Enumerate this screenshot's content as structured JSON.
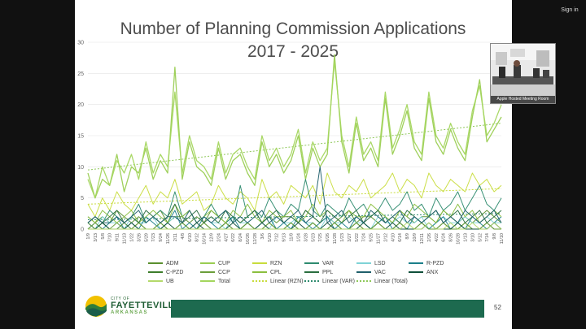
{
  "meeting": {
    "sign_in_label": "Sign in",
    "participant_label": "Apple Hosted Meeting Room"
  },
  "slide": {
    "page_number": "52",
    "logo": {
      "city_of": "CITY OF",
      "name": "FAYETTEVILLE",
      "state": "ARKANSAS"
    }
  },
  "chart_data": {
    "type": "line",
    "title_lines": [
      "Number of Planning Commission Applications",
      "2017 - 2025"
    ],
    "ylim": [
      0,
      30
    ],
    "yticks": [
      0,
      5,
      10,
      15,
      20,
      25,
      30
    ],
    "grid": true,
    "legend_position": "bottom",
    "x_labels": [
      "1/9",
      "3/13",
      "5/8",
      "7/10",
      "9/11",
      "11/13",
      "1/22",
      "3/26",
      "5/29",
      "7/23",
      "9/24",
      "11/26",
      "2/11",
      "4/8",
      "6/10",
      "8/12",
      "10/14",
      "12/9",
      "2/24",
      "4/27",
      "6/22",
      "8/24",
      "10/26",
      "12/28",
      "3/6",
      "5/10",
      "7/12",
      "9/13",
      "11/8",
      "1/24",
      "3/28",
      "5/23",
      "7/25",
      "9/26",
      "11/28",
      "1/23",
      "3/27",
      "5/22",
      "7/24",
      "9/25",
      "11/27",
      "2/12",
      "4/10",
      "6/14",
      "8/9",
      "10/9",
      "12/11",
      "2/26",
      "4/22",
      "6/24",
      "8/26",
      "10/28",
      "1/13",
      "3/10",
      "5/12",
      "7/14",
      "9/8",
      "11/10"
    ],
    "series": [
      {
        "name": "ADM",
        "color": "#5a8f2e",
        "values": [
          2,
          1,
          2,
          1,
          3,
          2,
          1,
          2,
          1,
          2,
          3,
          1,
          2,
          2,
          1,
          2,
          1,
          3,
          2,
          1,
          2,
          1,
          2,
          3,
          1,
          2,
          1,
          2,
          2,
          1,
          3,
          2,
          1,
          2,
          1,
          2,
          3,
          1,
          2,
          2,
          1,
          2,
          1,
          3,
          2,
          1,
          2,
          2,
          1,
          3,
          2,
          1,
          2,
          1,
          2,
          3,
          2,
          1
        ]
      },
      {
        "name": "CUP",
        "color": "#9acd52",
        "values": [
          9,
          5,
          8,
          7,
          12,
          6,
          10,
          9,
          13,
          8,
          11,
          9,
          26,
          8,
          14,
          10,
          9,
          7,
          13,
          8,
          11,
          12,
          9,
          7,
          14,
          10,
          12,
          9,
          11,
          15,
          8,
          13,
          10,
          12,
          28,
          14,
          9,
          17,
          11,
          13,
          10,
          21,
          12,
          15,
          19,
          13,
          11,
          21,
          14,
          12,
          16,
          13,
          11,
          18,
          24,
          14,
          16,
          18
        ]
      },
      {
        "name": "RZN",
        "color": "#c8dc3c",
        "values": [
          4,
          2,
          5,
          3,
          6,
          4,
          3,
          5,
          7,
          4,
          6,
          5,
          8,
          4,
          5,
          6,
          3,
          4,
          7,
          5,
          4,
          6,
          5,
          3,
          8,
          5,
          6,
          4,
          7,
          6,
          5,
          7,
          4,
          9,
          6,
          5,
          7,
          6,
          8,
          5,
          6,
          7,
          9,
          6,
          8,
          7,
          5,
          9,
          7,
          6,
          8,
          7,
          6,
          9,
          7,
          8,
          6,
          7
        ]
      },
      {
        "name": "VAR",
        "color": "#2e8b6f",
        "values": [
          1,
          2,
          1,
          3,
          2,
          1,
          2,
          4,
          1,
          2,
          3,
          2,
          6,
          2,
          3,
          1,
          2,
          4,
          2,
          3,
          1,
          7,
          2,
          3,
          2,
          5,
          3,
          2,
          4,
          3,
          8,
          3,
          2,
          4,
          3,
          2,
          5,
          3,
          4,
          2,
          3,
          5,
          3,
          4,
          6,
          3,
          4,
          2,
          5,
          3,
          4,
          6,
          3,
          5,
          7,
          4,
          3,
          5
        ]
      },
      {
        "name": "LSD",
        "color": "#7fd3d6",
        "values": [
          1,
          0,
          2,
          1,
          1,
          0,
          2,
          1,
          1,
          2,
          0,
          1,
          2,
          1,
          0,
          1,
          2,
          1,
          1,
          0,
          2,
          1,
          1,
          2,
          1,
          0,
          2,
          1,
          1,
          2,
          1,
          1,
          0,
          2,
          1,
          1,
          2,
          1,
          1,
          0,
          2,
          1,
          1,
          2,
          1,
          1,
          2,
          0,
          1,
          2,
          1,
          1,
          2,
          1,
          1,
          2,
          1,
          1
        ]
      },
      {
        "name": "R-PZD",
        "color": "#1b7f8a",
        "values": [
          0,
          1,
          0,
          1,
          2,
          0,
          1,
          0,
          2,
          1,
          0,
          1,
          3,
          0,
          1,
          0,
          2,
          1,
          0,
          1,
          2,
          0,
          1,
          0,
          1,
          2,
          0,
          1,
          0,
          2,
          1,
          0,
          1,
          2,
          0,
          1,
          0,
          2,
          1,
          0,
          1,
          2,
          0,
          1,
          0,
          2,
          1,
          0,
          1,
          2,
          0,
          1,
          0,
          2,
          1,
          0,
          1,
          2
        ]
      },
      {
        "name": "C-PZD",
        "color": "#3d7d2b",
        "values": [
          1,
          0,
          1,
          0,
          0,
          1,
          0,
          1,
          0,
          0,
          1,
          0,
          0,
          1,
          0,
          0,
          1,
          0,
          0,
          1,
          0,
          0,
          1,
          0,
          0,
          1,
          0,
          0,
          1,
          0,
          0,
          1,
          0,
          0,
          1,
          0,
          0,
          1,
          0,
          0,
          1,
          0,
          0,
          1,
          0,
          0,
          1,
          0,
          0,
          1,
          0,
          0,
          1,
          0,
          0,
          1,
          0,
          0
        ]
      },
      {
        "name": "CCP",
        "color": "#6b9e3a",
        "values": [
          0,
          1,
          0,
          0,
          1,
          0,
          0,
          1,
          0,
          0,
          1,
          0,
          0,
          1,
          0,
          0,
          1,
          0,
          0,
          1,
          0,
          0,
          1,
          0,
          0,
          1,
          0,
          0,
          1,
          0,
          0,
          1,
          0,
          0,
          1,
          0,
          0,
          1,
          0,
          0,
          1,
          0,
          0,
          1,
          0,
          0,
          1,
          0,
          0,
          1,
          0,
          0,
          1,
          0,
          0,
          1,
          0,
          0
        ]
      },
      {
        "name": "CPL",
        "color": "#8bbf3f",
        "values": [
          2,
          1,
          3,
          2,
          1,
          2,
          3,
          1,
          2,
          3,
          2,
          1,
          4,
          2,
          3,
          1,
          2,
          3,
          2,
          1,
          3,
          2,
          4,
          2,
          1,
          3,
          2,
          2,
          3,
          1,
          2,
          4,
          2,
          3,
          2,
          1,
          3,
          2,
          2,
          4,
          3,
          2,
          1,
          3,
          2,
          4,
          3,
          2,
          1,
          3,
          2,
          4,
          2,
          3,
          1,
          2,
          3,
          2
        ]
      },
      {
        "name": "PPL",
        "color": "#2a6e3f",
        "values": [
          1,
          2,
          1,
          2,
          3,
          1,
          2,
          1,
          3,
          2,
          1,
          2,
          4,
          1,
          2,
          3,
          1,
          2,
          1,
          3,
          2,
          1,
          2,
          3,
          1,
          2,
          3,
          1,
          2,
          1,
          3,
          2,
          1,
          3,
          2,
          1,
          2,
          3,
          1,
          2,
          3,
          1,
          2,
          1,
          3,
          2,
          1,
          2,
          3,
          1,
          2,
          3,
          1,
          2,
          3,
          1,
          2,
          3
        ]
      },
      {
        "name": "VAC",
        "color": "#1f5f6b",
        "values": [
          1,
          2,
          1,
          1,
          2,
          1,
          2,
          3,
          1,
          2,
          1,
          2,
          2,
          1,
          3,
          1,
          2,
          1,
          2,
          3,
          1,
          2,
          1,
          2,
          3,
          1,
          2,
          1,
          2,
          3,
          1,
          2,
          10,
          1,
          2,
          3,
          1,
          2,
          1,
          3,
          2,
          1,
          2,
          3,
          1,
          2,
          1,
          2,
          3,
          1,
          2,
          1,
          3,
          2,
          1,
          2,
          3,
          1
        ]
      },
      {
        "name": "ANX",
        "color": "#0f4f3a",
        "values": [
          0,
          0,
          1,
          0,
          0,
          0,
          1,
          0,
          0,
          0,
          0,
          1,
          0,
          0,
          0,
          1,
          0,
          0,
          0,
          0,
          1,
          0,
          0,
          0,
          1,
          0,
          0,
          0,
          0,
          1,
          0,
          0,
          0,
          1,
          0,
          0,
          0,
          0,
          1,
          0,
          0,
          0,
          1,
          0,
          0,
          0,
          0,
          1,
          0,
          0,
          0,
          1,
          0,
          0,
          0,
          0,
          1,
          0
        ]
      },
      {
        "name": "UB",
        "color": "#b4d96b",
        "values": [
          0,
          0,
          0,
          0,
          0,
          0,
          0,
          0,
          0,
          0,
          0,
          0,
          0,
          0,
          0,
          0,
          0,
          0,
          0,
          0,
          0,
          0,
          0,
          0,
          0,
          0,
          0,
          0,
          0,
          0,
          0,
          0,
          0,
          0,
          0,
          0,
          0,
          0,
          0,
          0,
          0,
          0,
          0,
          0,
          1,
          0,
          0,
          1,
          0,
          0,
          1,
          0,
          0,
          1,
          0,
          0,
          1,
          0
        ]
      },
      {
        "name": "Total",
        "color": "#a4d65e",
        "values": [
          8,
          5,
          10,
          7,
          11,
          9,
          12,
          8,
          14,
          9,
          12,
          10,
          22,
          9,
          15,
          11,
          10,
          8,
          14,
          9,
          12,
          13,
          10,
          8,
          15,
          11,
          13,
          10,
          12,
          16,
          9,
          14,
          11,
          13,
          27,
          15,
          10,
          18,
          12,
          14,
          11,
          22,
          13,
          16,
          20,
          14,
          12,
          22,
          15,
          13,
          17,
          14,
          12,
          19,
          23,
          15,
          17,
          20
        ]
      }
    ],
    "trendlines": [
      {
        "name": "Linear (RZN)",
        "color": "#c8dc3c",
        "start": 4,
        "end": 6.5
      },
      {
        "name": "Linear (VAR)",
        "color": "#2e8b6f",
        "start": 1.5,
        "end": 2.5
      },
      {
        "name": "Linear (Total)",
        "color": "#8fc85a",
        "start": 9.5,
        "end": 17
      }
    ]
  }
}
